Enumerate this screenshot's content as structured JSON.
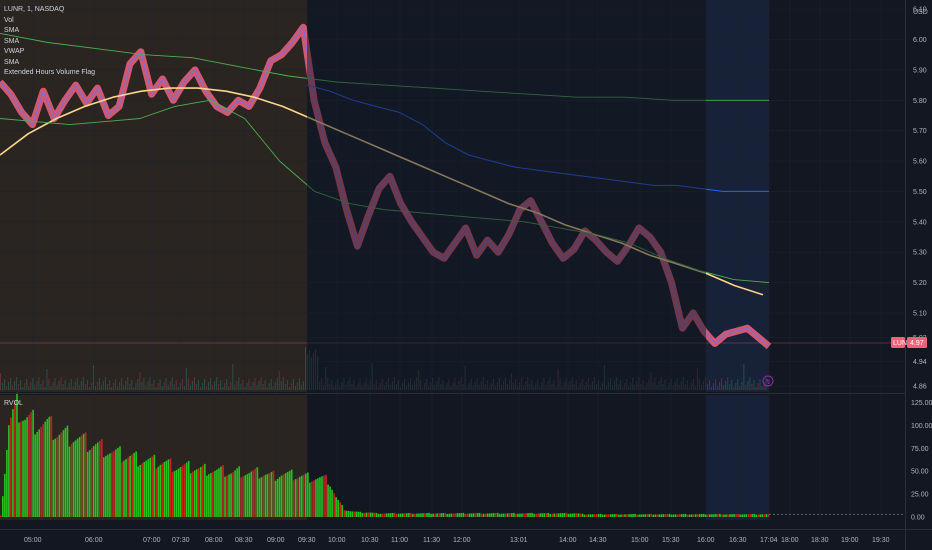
{
  "symbol_line": "LUNR, 1, NASDAQ",
  "indicators": [
    "Vol",
    "SMA",
    "SMA",
    "VWAP",
    "SMA",
    "Extended Hours Volume Flag"
  ],
  "rvol_label": "RVOL",
  "currency": "USD",
  "price_badge": {
    "symbol": "LUNR",
    "price": "4.97"
  },
  "colors": {
    "background": "#131722",
    "premarket_shade": "#2a2521",
    "session_shade": "#131a28",
    "afterhours_shade": "#172238",
    "price_line": "#7a6fd8",
    "price_band": "#f2617a",
    "sma_fast": "#ffd58a",
    "vwap": "#2962ff",
    "band": "#4caf50",
    "rvol_green": "#27c21f",
    "rvol_red": "#c9221f"
  },
  "chart_data": [
    {
      "type": "line",
      "title": "LUNR, 1, NASDAQ",
      "x_ticks": [
        "05:00",
        "06:00",
        "07:00",
        "07:30",
        "08:00",
        "08:30",
        "09:00",
        "09:30",
        "10:00",
        "10:30",
        "11:00",
        "11:30",
        "12:00",
        "13:01",
        "14:00",
        "14:30",
        "15:00",
        "15:30",
        "16:00",
        "16:30",
        "17:04",
        "18:00",
        "18:30",
        "19:00",
        "19:30"
      ],
      "y_ticks": [
        "6.10",
        "6.00",
        "5.90",
        "5.80",
        "5.70",
        "5.60",
        "5.50",
        "5.40",
        "5.30",
        "5.20",
        "5.10",
        "5.02",
        "4.94",
        "4.86"
      ],
      "ylim": [
        4.84,
        6.13
      ],
      "series": [
        {
          "values": [
            5.86,
            5.82,
            5.76,
            5.72,
            5.83,
            5.74,
            5.8,
            5.85,
            5.79,
            5.84,
            5.75,
            5.78,
            5.92,
            5.96,
            5.82,
            5.87,
            5.8,
            5.86,
            5.9,
            5.83,
            5.78,
            5.76,
            5.8,
            5.78,
            5.84,
            5.93,
            5.95,
            5.99,
            6.04,
            5.8,
            5.66,
            5.58,
            5.44,
            5.32,
            5.42,
            5.51,
            5.55,
            5.46,
            5.4,
            5.35,
            5.3,
            5.28,
            5.33,
            5.38,
            5.29,
            5.34,
            5.3,
            5.36,
            5.44,
            5.47,
            5.4,
            5.33,
            5.28,
            5.31,
            5.37,
            5.34,
            5.3,
            5.27,
            5.32,
            5.38,
            5.35,
            5.3,
            5.2,
            5.05,
            5.1,
            5.04,
            5.0,
            5.03,
            5.04,
            5.05,
            5.02,
            4.99
          ]
        },
        {
          "values": [
            5.62,
            5.69,
            5.74,
            5.78,
            5.81,
            5.83,
            5.84,
            5.84,
            5.83,
            5.81,
            5.78,
            5.74,
            5.7,
            5.66,
            5.62,
            5.58,
            5.54,
            5.5,
            5.46,
            5.43,
            5.39,
            5.36,
            5.33,
            5.29,
            5.26,
            5.23,
            5.19,
            5.16
          ]
        },
        {
          "values": [
            5.85,
            5.83,
            5.8,
            5.78,
            5.76,
            5.72,
            5.66,
            5.62,
            5.6,
            5.58,
            5.57,
            5.56,
            5.55,
            5.54,
            5.53,
            5.52,
            5.52,
            5.51,
            5.5,
            5.5,
            5.5
          ]
        },
        {
          "values": [
            6.02,
            5.99,
            5.97,
            5.95,
            5.94,
            5.91,
            5.88,
            5.86,
            5.85,
            5.84,
            5.83,
            5.82,
            5.81,
            5.81,
            5.8,
            5.8,
            5.8
          ]
        },
        {
          "values": [
            5.74,
            5.73,
            5.72,
            5.73,
            5.74,
            5.78,
            5.8,
            5.74,
            5.6,
            5.5,
            5.46,
            5.44,
            5.43,
            5.42,
            5.41,
            5.4,
            5.38,
            5.36,
            5.33,
            5.28,
            5.24,
            5.21,
            5.2
          ]
        }
      ]
    },
    {
      "type": "bar",
      "title": "RVOL",
      "y_ticks": [
        "125.00",
        "100.00",
        "75.00",
        "50.00",
        "25.00",
        "0.00"
      ],
      "ylim": [
        0,
        130
      ],
      "profile": [
        0,
        100,
        120,
        108,
        105,
        102,
        100,
        92,
        90,
        88,
        84,
        80,
        78,
        75,
        70,
        68,
        66,
        64,
        62,
        60,
        60,
        58,
        55,
        54,
        54,
        52,
        52,
        50,
        50,
        48,
        50,
        48,
        48,
        47,
        45,
        47,
        46,
        45,
        44,
        43,
        42,
        40,
        20,
        8,
        6,
        5,
        5,
        4,
        4,
        4,
        4,
        4,
        4,
        4,
        4,
        4,
        4,
        4,
        4,
        4,
        4,
        4,
        4,
        4,
        4,
        4,
        4,
        4,
        4,
        4,
        4,
        4,
        4,
        3,
        3,
        3,
        3,
        3,
        3,
        3,
        3,
        3,
        3,
        3,
        3,
        3,
        3,
        3,
        3,
        3,
        3,
        3,
        3,
        3,
        3,
        3,
        3
      ]
    }
  ]
}
